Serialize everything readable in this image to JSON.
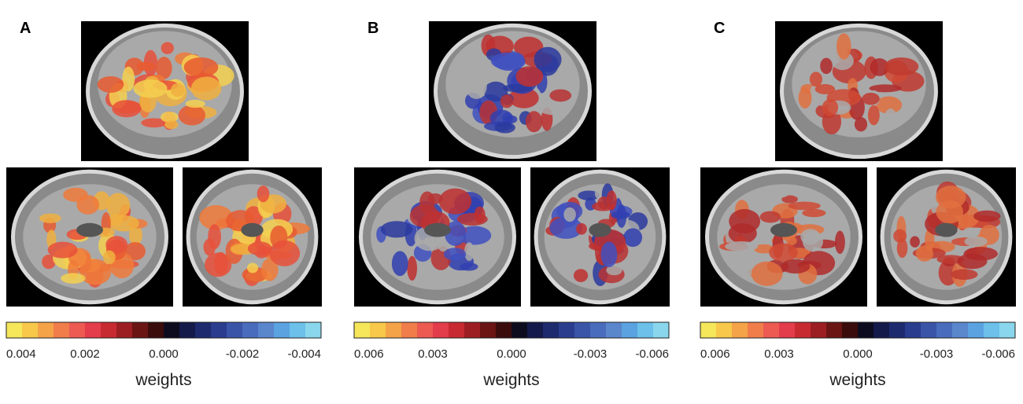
{
  "figure": {
    "panels": [
      {
        "label": "A",
        "colorbar_ticks": [
          "0.004",
          "0.002",
          "0.000",
          "-0.002",
          "-0.004"
        ],
        "colorbar_label": "weights"
      },
      {
        "label": "B",
        "colorbar_ticks": [
          "0.006",
          "0.003",
          "0.000",
          "-0.003",
          "-0.006"
        ],
        "colorbar_label": "weights"
      },
      {
        "label": "C",
        "colorbar_ticks": [
          "0.006",
          "0.003",
          "0.000",
          "-0.003",
          "-0.006"
        ],
        "colorbar_label": "weights"
      }
    ]
  }
}
